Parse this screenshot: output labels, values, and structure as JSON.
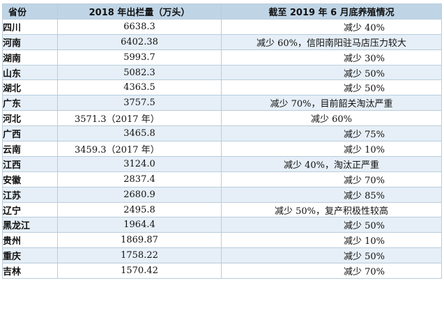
{
  "table": {
    "headers": [
      "省份",
      "2018 年出栏量（万头）",
      "截至 2019 年 6 月底养殖情况"
    ],
    "rows": [
      {
        "province": "四川",
        "output": "6638.3",
        "status": "减少 40%"
      },
      {
        "province": "河南",
        "output": "6402.38",
        "status": "减少 60%，信阳南阳驻马店压力较大"
      },
      {
        "province": "湖南",
        "output": "5993.7",
        "status": "减少 30%"
      },
      {
        "province": "山东",
        "output": "5082.3",
        "status": "减少 50%"
      },
      {
        "province": "湖北",
        "output": "4363.5",
        "status": "减少 50%"
      },
      {
        "province": "广东",
        "output": "3757.5",
        "status": "减少 70%，目前韶关淘汰严重"
      },
      {
        "province": "河北",
        "output": "3571.3（2017 年）",
        "status": "减少 60%"
      },
      {
        "province": "广西",
        "output": "3465.8",
        "status": "减少 75%"
      },
      {
        "province": "云南",
        "output": "3459.3（2017 年）",
        "status": "减少 10%"
      },
      {
        "province": "江西",
        "output": "3124.0",
        "status": "减少 40%，淘汰正严重"
      },
      {
        "province": "安徽",
        "output": "2837.4",
        "status": "减少 70%"
      },
      {
        "province": "江苏",
        "output": "2680.9",
        "status": "减少 85%"
      },
      {
        "province": "辽宁",
        "output": "2495.8",
        "status": "减少 50%，复产积极性较高"
      },
      {
        "province": "黑龙江",
        "output": "1964.4",
        "status": "减少 50%"
      },
      {
        "province": "贵州",
        "output": "1869.87",
        "status": "减少 10%"
      },
      {
        "province": "重庆",
        "output": "1758.22",
        "status": "减少 50%"
      },
      {
        "province": "吉林",
        "output": "1570.42",
        "status": "减少 70%"
      }
    ]
  },
  "colors": {
    "header_bg": "#bfd5e6",
    "alt_row_bg": "#e6eff7",
    "border": "#b8ccdc"
  }
}
